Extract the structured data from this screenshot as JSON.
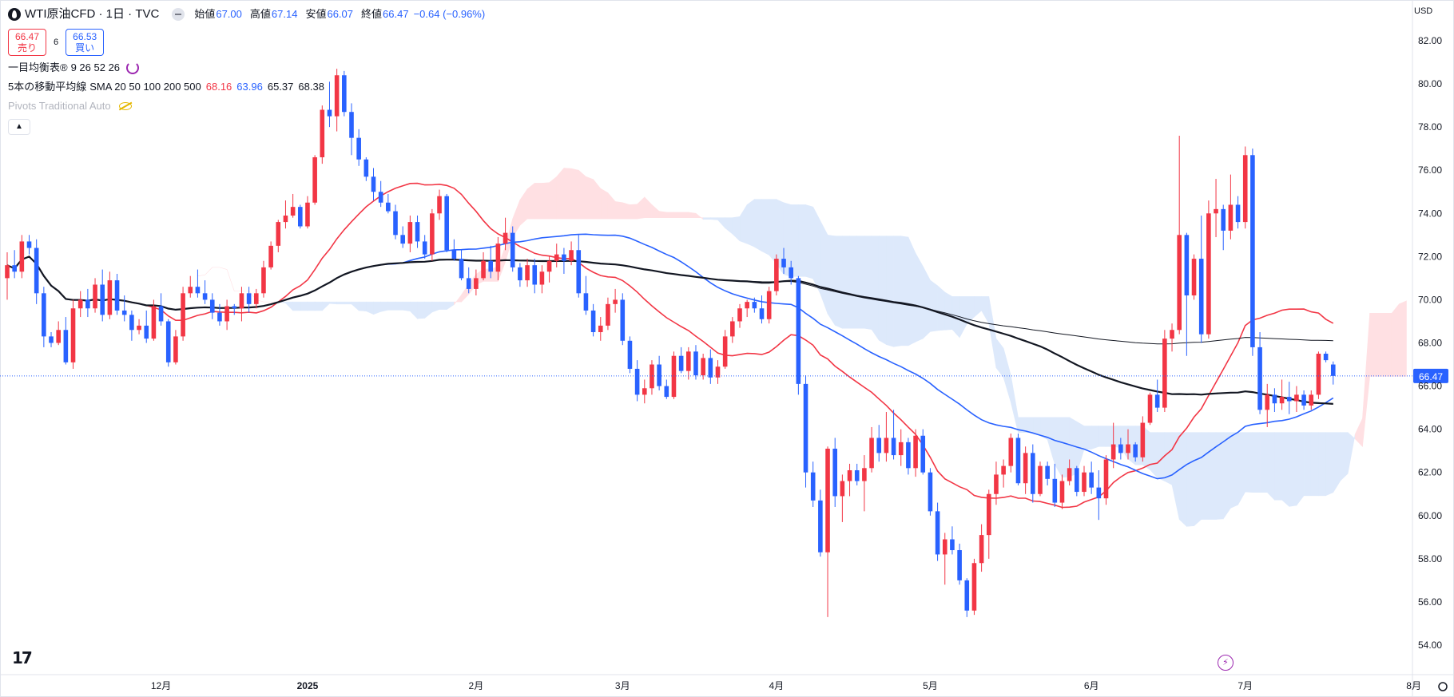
{
  "header": {
    "title": "WTI原油CFD · 1日 · TVC",
    "ohlc": [
      {
        "k": "始値",
        "v": "67.00"
      },
      {
        "k": "高値",
        "v": "67.14"
      },
      {
        "k": "安値",
        "v": "66.07"
      },
      {
        "k": "終値",
        "v": "66.47"
      }
    ],
    "change": "−0.64 (−0.96%)",
    "sell_price": "66.47",
    "sell_label": "売り",
    "spread": "6",
    "buy_price": "66.53",
    "buy_label": "買い"
  },
  "indicators": {
    "ichimoku": {
      "name": "一目均衡表®",
      "params": "9 26 52 26"
    },
    "sma": {
      "name": "5本の移動平均線",
      "params": "SMA 20 50 100 200 500",
      "values": [
        "68.16",
        "63.96",
        "65.37",
        "68.38"
      ]
    },
    "pivots": {
      "name": "Pivots Traditional Auto"
    }
  },
  "currency": "USD",
  "last_price_label": "66.47",
  "colors": {
    "up": "#f23645",
    "down": "#2962ff",
    "sma20": "#f23645",
    "sma50": "#2962ff",
    "sma100": "#131722",
    "sma200": "#131722",
    "kumo_bull": "#ffe0e3",
    "kumo_bear": "#dde9fb"
  },
  "icons": [
    "symbol-icon",
    "collapse-legend-icon",
    "refresh-icon",
    "hidden-eye-icon",
    "tradingview-logo-icon",
    "flash-icon",
    "settings-icon"
  ],
  "chart_data": {
    "type": "candlestick",
    "symbol": "WTI原油CFD",
    "interval": "1日",
    "ylim": [
      53,
      83
    ],
    "y_ticks": [
      54,
      56,
      58,
      60,
      62,
      64,
      66,
      68,
      70,
      72,
      74,
      76,
      78,
      80,
      82
    ],
    "x_labels": [
      {
        "label": "12月",
        "bar": 21
      },
      {
        "label": "2025",
        "bar": 41
      },
      {
        "label": "2月",
        "bar": 64
      },
      {
        "label": "3月",
        "bar": 84
      },
      {
        "label": "4月",
        "bar": 105
      },
      {
        "label": "5月",
        "bar": 126
      },
      {
        "label": "6月",
        "bar": 148
      },
      {
        "label": "7月",
        "bar": 169
      },
      {
        "label": "8月",
        "bar": 192
      }
    ],
    "last_price": 66.47,
    "candles": [
      [
        71.0,
        72.2,
        70.0,
        71.6
      ],
      [
        71.6,
        72.3,
        71.0,
        71.3
      ],
      [
        71.3,
        73.0,
        71.0,
        72.7
      ],
      [
        72.7,
        73.0,
        72.1,
        72.4
      ],
      [
        72.4,
        72.8,
        69.8,
        70.3
      ],
      [
        70.3,
        70.6,
        67.8,
        68.3
      ],
      [
        68.3,
        68.5,
        67.8,
        68.0
      ],
      [
        68.0,
        69.0,
        67.9,
        68.6
      ],
      [
        68.6,
        69.2,
        67.0,
        67.1
      ],
      [
        67.1,
        70.0,
        66.8,
        69.6
      ],
      [
        69.6,
        70.4,
        69.2,
        70.0
      ],
      [
        70.0,
        70.5,
        69.2,
        69.6
      ],
      [
        69.6,
        71.0,
        69.4,
        70.7
      ],
      [
        70.7,
        71.4,
        69.0,
        69.3
      ],
      [
        69.3,
        71.3,
        69.1,
        70.9
      ],
      [
        70.9,
        71.2,
        69.3,
        69.5
      ],
      [
        69.5,
        70.2,
        69.0,
        69.3
      ],
      [
        69.3,
        69.5,
        68.1,
        68.6
      ],
      [
        68.6,
        69.1,
        68.4,
        68.8
      ],
      [
        68.8,
        69.5,
        68.0,
        68.2
      ],
      [
        68.2,
        70.0,
        68.1,
        69.7
      ],
      [
        69.7,
        70.3,
        68.8,
        69.0
      ],
      [
        69.0,
        69.1,
        66.9,
        67.1
      ],
      [
        67.1,
        68.6,
        67.0,
        68.3
      ],
      [
        68.3,
        70.6,
        68.1,
        70.3
      ],
      [
        70.3,
        71.1,
        70.1,
        70.6
      ],
      [
        70.6,
        71.4,
        70.1,
        70.3
      ],
      [
        70.3,
        70.9,
        69.8,
        70.0
      ],
      [
        70.0,
        70.3,
        69.1,
        69.4
      ],
      [
        69.4,
        69.8,
        68.8,
        69.0
      ],
      [
        69.0,
        70.0,
        68.6,
        69.7
      ],
      [
        69.7,
        69.8,
        69.3,
        69.6
      ],
      [
        69.6,
        70.6,
        69.0,
        70.3
      ],
      [
        70.3,
        70.6,
        69.4,
        69.8
      ],
      [
        69.8,
        70.5,
        69.6,
        70.3
      ],
      [
        70.3,
        71.8,
        70.1,
        71.5
      ],
      [
        71.5,
        72.7,
        71.4,
        72.5
      ],
      [
        72.5,
        73.7,
        72.2,
        73.6
      ],
      [
        73.6,
        74.6,
        73.3,
        73.9
      ],
      [
        73.9,
        74.9,
        73.8,
        74.3
      ],
      [
        74.3,
        74.4,
        73.3,
        73.4
      ],
      [
        73.4,
        74.8,
        73.3,
        74.5
      ],
      [
        74.5,
        76.7,
        74.4,
        76.6
      ],
      [
        76.6,
        79.0,
        76.3,
        78.8
      ],
      [
        78.8,
        80.1,
        78.0,
        78.5
      ],
      [
        78.5,
        80.7,
        77.8,
        80.4
      ],
      [
        80.4,
        80.6,
        78.5,
        78.7
      ],
      [
        78.7,
        79.1,
        76.7,
        77.5
      ],
      [
        77.5,
        77.9,
        76.2,
        76.5
      ],
      [
        76.5,
        76.6,
        75.5,
        75.7
      ],
      [
        75.7,
        76.1,
        74.6,
        75.0
      ],
      [
        75.0,
        75.5,
        74.3,
        74.5
      ],
      [
        74.5,
        74.9,
        74.0,
        74.1
      ],
      [
        74.1,
        74.4,
        72.8,
        73.0
      ],
      [
        73.0,
        73.4,
        72.4,
        72.6
      ],
      [
        72.6,
        73.9,
        72.2,
        73.6
      ],
      [
        73.6,
        73.9,
        72.4,
        72.7
      ],
      [
        72.7,
        73.0,
        71.9,
        72.1
      ],
      [
        72.1,
        74.2,
        71.8,
        74.0
      ],
      [
        74.0,
        75.1,
        73.7,
        74.8
      ],
      [
        74.8,
        74.9,
        72.2,
        72.3
      ],
      [
        72.3,
        72.8,
        71.8,
        71.9
      ],
      [
        71.9,
        72.3,
        70.9,
        71.0
      ],
      [
        71.0,
        71.5,
        70.3,
        70.5
      ],
      [
        70.5,
        71.4,
        70.2,
        71.0
      ],
      [
        71.0,
        72.2,
        70.9,
        71.8
      ],
      [
        71.8,
        72.5,
        71.0,
        71.3
      ],
      [
        71.3,
        72.9,
        70.9,
        72.6
      ],
      [
        72.6,
        73.8,
        72.3,
        73.1
      ],
      [
        73.1,
        73.4,
        71.3,
        71.5
      ],
      [
        71.5,
        71.7,
        70.6,
        70.9
      ],
      [
        70.9,
        71.9,
        70.6,
        71.6
      ],
      [
        71.6,
        71.9,
        70.3,
        70.7
      ],
      [
        70.7,
        71.6,
        70.3,
        71.3
      ],
      [
        71.3,
        72.0,
        70.8,
        71.8
      ],
      [
        71.8,
        72.6,
        71.5,
        72.1
      ],
      [
        72.1,
        72.4,
        71.2,
        71.8
      ],
      [
        71.8,
        72.7,
        71.6,
        72.3
      ],
      [
        72.3,
        73.0,
        70.1,
        70.3
      ],
      [
        70.3,
        71.1,
        69.3,
        69.5
      ],
      [
        69.5,
        69.8,
        68.3,
        68.5
      ],
      [
        68.5,
        69.2,
        68.1,
        68.8
      ],
      [
        68.8,
        70.1,
        68.6,
        69.8
      ],
      [
        69.8,
        70.5,
        69.4,
        70.0
      ],
      [
        70.0,
        70.3,
        67.9,
        68.1
      ],
      [
        68.1,
        68.3,
        66.6,
        66.8
      ],
      [
        66.8,
        67.2,
        65.3,
        65.6
      ],
      [
        65.6,
        66.3,
        65.2,
        65.9
      ],
      [
        65.9,
        67.2,
        65.6,
        67.0
      ],
      [
        67.0,
        67.4,
        65.8,
        66.0
      ],
      [
        66.0,
        66.3,
        65.4,
        65.5
      ],
      [
        65.5,
        67.6,
        65.4,
        67.4
      ],
      [
        67.4,
        67.8,
        66.6,
        66.7
      ],
      [
        66.7,
        67.8,
        66.3,
        67.6
      ],
      [
        67.6,
        67.9,
        66.3,
        66.5
      ],
      [
        66.5,
        67.5,
        66.3,
        67.3
      ],
      [
        67.3,
        67.7,
        66.1,
        66.4
      ],
      [
        66.4,
        67.2,
        66.1,
        66.9
      ],
      [
        66.9,
        68.6,
        66.8,
        68.3
      ],
      [
        68.3,
        69.2,
        68.0,
        69.0
      ],
      [
        69.0,
        69.8,
        68.7,
        69.6
      ],
      [
        69.6,
        70.0,
        69.2,
        69.9
      ],
      [
        69.9,
        70.1,
        69.4,
        69.6
      ],
      [
        69.6,
        70.2,
        68.9,
        69.1
      ],
      [
        69.1,
        70.6,
        68.9,
        70.4
      ],
      [
        70.4,
        72.1,
        70.2,
        71.9
      ],
      [
        71.9,
        72.4,
        71.2,
        71.5
      ],
      [
        71.5,
        71.8,
        70.7,
        71.0
      ],
      [
        71.0,
        71.1,
        65.6,
        66.1
      ],
      [
        66.1,
        66.5,
        61.3,
        62.0
      ],
      [
        62.0,
        62.5,
        60.4,
        60.7
      ],
      [
        60.7,
        61.2,
        58.1,
        58.3
      ],
      [
        58.3,
        63.2,
        55.3,
        63.1
      ],
      [
        63.1,
        63.6,
        60.4,
        60.9
      ],
      [
        60.9,
        61.9,
        59.7,
        61.6
      ],
      [
        61.6,
        62.4,
        60.9,
        62.1
      ],
      [
        62.1,
        62.4,
        61.4,
        61.6
      ],
      [
        61.6,
        62.8,
        60.2,
        62.2
      ],
      [
        62.2,
        64.1,
        62.0,
        63.6
      ],
      [
        63.6,
        64.2,
        62.5,
        62.9
      ],
      [
        62.9,
        64.8,
        62.5,
        63.6
      ],
      [
        63.6,
        64.9,
        62.6,
        62.8
      ],
      [
        62.8,
        64.0,
        62.3,
        63.4
      ],
      [
        63.4,
        63.6,
        61.9,
        62.2
      ],
      [
        62.2,
        64.0,
        61.8,
        63.7
      ],
      [
        63.7,
        64.0,
        61.9,
        62.0
      ],
      [
        62.0,
        62.2,
        60.0,
        60.2
      ],
      [
        60.2,
        60.6,
        57.9,
        58.2
      ],
      [
        58.2,
        59.2,
        56.8,
        58.9
      ],
      [
        58.9,
        59.5,
        58.2,
        58.4
      ],
      [
        58.4,
        58.7,
        56.8,
        57.0
      ],
      [
        57.0,
        57.1,
        55.3,
        55.6
      ],
      [
        55.6,
        58.0,
        55.4,
        57.8
      ],
      [
        57.8,
        59.6,
        57.4,
        59.1
      ],
      [
        59.1,
        61.2,
        58.0,
        61.0
      ],
      [
        61.0,
        62.5,
        60.5,
        61.9
      ],
      [
        61.9,
        62.6,
        61.3,
        62.3
      ],
      [
        62.3,
        63.8,
        62.0,
        63.6
      ],
      [
        63.6,
        63.8,
        61.4,
        61.5
      ],
      [
        61.5,
        63.2,
        61.0,
        62.9
      ],
      [
        62.9,
        63.3,
        60.6,
        61.0
      ],
      [
        61.0,
        62.5,
        60.9,
        62.3
      ],
      [
        62.3,
        62.5,
        61.4,
        61.7
      ],
      [
        61.7,
        62.4,
        60.4,
        60.6
      ],
      [
        60.6,
        61.9,
        60.3,
        61.6
      ],
      [
        61.6,
        62.6,
        61.4,
        62.2
      ],
      [
        62.2,
        62.3,
        60.9,
        61.1
      ],
      [
        61.1,
        62.3,
        60.9,
        62.0
      ],
      [
        62.0,
        62.5,
        61.0,
        61.3
      ],
      [
        61.3,
        62.1,
        59.8,
        60.8
      ],
      [
        60.8,
        62.8,
        60.5,
        62.6
      ],
      [
        62.6,
        64.3,
        62.2,
        63.3
      ],
      [
        63.3,
        63.6,
        62.6,
        62.9
      ],
      [
        62.9,
        64.0,
        62.6,
        63.3
      ],
      [
        63.3,
        63.4,
        62.5,
        62.7
      ],
      [
        62.7,
        64.6,
        62.5,
        64.3
      ],
      [
        64.3,
        65.7,
        64.2,
        65.6
      ],
      [
        65.6,
        66.3,
        64.8,
        65.0
      ],
      [
        65.0,
        68.6,
        64.8,
        68.2
      ],
      [
        68.2,
        68.9,
        67.6,
        68.6
      ],
      [
        68.6,
        77.6,
        68.4,
        73.0
      ],
      [
        73.0,
        73.1,
        67.4,
        70.2
      ],
      [
        70.2,
        72.1,
        70.0,
        71.9
      ],
      [
        71.9,
        73.9,
        68.0,
        68.4
      ],
      [
        68.4,
        74.6,
        68.2,
        74.0
      ],
      [
        74.0,
        75.6,
        72.9,
        74.2
      ],
      [
        74.2,
        74.4,
        72.3,
        73.2
      ],
      [
        73.2,
        75.8,
        72.8,
        74.4
      ],
      [
        74.4,
        74.8,
        73.3,
        73.6
      ],
      [
        73.6,
        77.1,
        73.3,
        76.7
      ],
      [
        76.7,
        77.0,
        67.4,
        67.8
      ],
      [
        67.8,
        68.5,
        64.7,
        64.9
      ],
      [
        64.9,
        66.1,
        64.1,
        65.6
      ],
      [
        65.6,
        65.9,
        64.8,
        65.2
      ],
      [
        65.2,
        66.3,
        64.9,
        65.5
      ],
      [
        65.5,
        66.2,
        64.7,
        65.3
      ],
      [
        65.3,
        66.0,
        64.8,
        65.6
      ],
      [
        65.6,
        65.8,
        64.9,
        65.1
      ],
      [
        65.1,
        65.8,
        64.9,
        65.6
      ],
      [
        65.6,
        67.6,
        65.4,
        67.5
      ],
      [
        67.5,
        67.6,
        67.1,
        67.2
      ],
      [
        67.0,
        67.14,
        66.07,
        66.47
      ]
    ]
  }
}
